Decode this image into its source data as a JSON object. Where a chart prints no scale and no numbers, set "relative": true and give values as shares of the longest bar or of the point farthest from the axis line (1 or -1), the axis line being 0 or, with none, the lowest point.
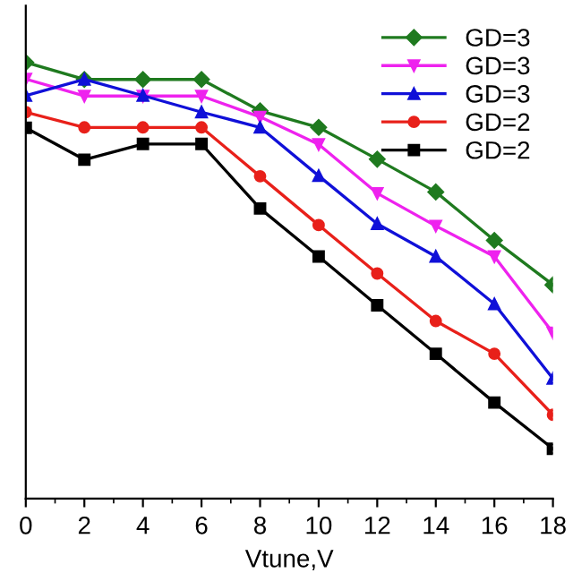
{
  "chart_data": {
    "type": "line",
    "xlabel": "Vtune,V",
    "relative": true,
    "x": [
      0,
      2,
      4,
      6,
      8,
      10,
      12,
      14,
      16,
      18
    ],
    "xlim": [
      0,
      18
    ],
    "xticks": [
      0,
      2,
      4,
      6,
      8,
      10,
      12,
      14,
      16,
      18
    ],
    "legend": "top right",
    "grid": false,
    "series": [
      {
        "name": "GD=3",
        "color": "#1f7a1f",
        "marker": "diamond",
        "values": [
          1,
          0.961,
          0.961,
          0.961,
          0.889,
          0.851,
          0.778,
          0.703,
          0.592,
          0.49
        ]
      },
      {
        "name": "GD=3",
        "color": "#ee22ee",
        "marker": "triangle_down",
        "values": [
          0.962,
          0.923,
          0.923,
          0.923,
          0.875,
          0.812,
          0.7,
          0.625,
          0.555,
          0.38
        ]
      },
      {
        "name": "GD=3",
        "color": "#1010d8",
        "marker": "triangle",
        "values": [
          0.924,
          0.961,
          0.924,
          0.886,
          0.851,
          0.74,
          0.63,
          0.555,
          0.446,
          0.275
        ]
      },
      {
        "name": "GD=2",
        "color": "#e8201a",
        "marker": "circle",
        "values": [
          0.886,
          0.851,
          0.851,
          0.851,
          0.739,
          0.627,
          0.516,
          0.407,
          0.332,
          0.192
        ]
      },
      {
        "name": "GD=2",
        "color": "#000000",
        "marker": "square",
        "values": [
          0.85,
          0.777,
          0.813,
          0.813,
          0.665,
          0.555,
          0.443,
          0.332,
          0.22,
          0.114
        ]
      }
    ]
  }
}
